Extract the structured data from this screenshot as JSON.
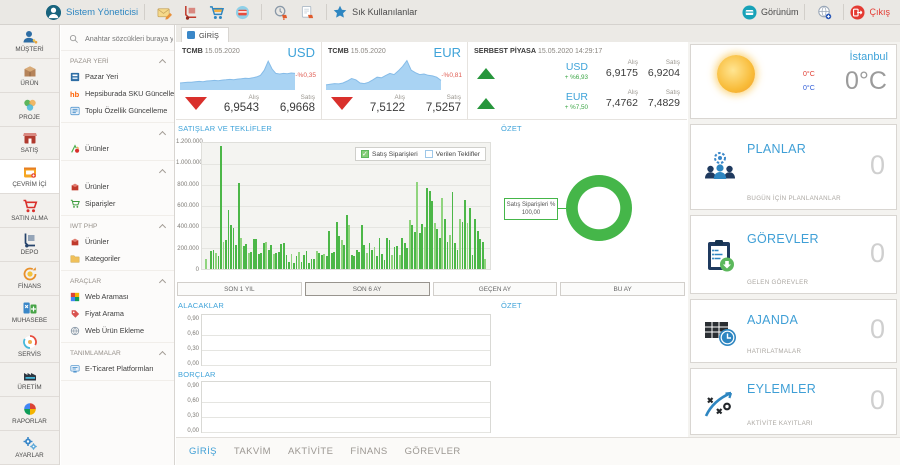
{
  "toolbar": {
    "user_name": "Sistem Yöneticisi",
    "favorites_label": "Sık Kullanılanlar",
    "view_label": "Görünüm",
    "exit_label": "Çıkış",
    "icons": [
      "user-avatar-icon",
      "mail-icon",
      "handtruck-icon",
      "cart-icon",
      "pos-icon",
      "pending-cart-icon",
      "document-cart-icon",
      "star-icon",
      "view-icon",
      "globe-icon",
      "exit-icon"
    ]
  },
  "sidebar": {
    "items": [
      {
        "label": "MÜŞTERİ",
        "icon": "customers-icon",
        "active": false
      },
      {
        "label": "ÜRÜN",
        "icon": "product-box-icon",
        "active": false
      },
      {
        "label": "PROJE",
        "icon": "projects-icon",
        "active": false
      },
      {
        "label": "SATIŞ",
        "icon": "sales-icon",
        "active": false
      },
      {
        "label": "ÇEVRİM İÇİ",
        "icon": "online-store-icon",
        "active": true
      },
      {
        "label": "SATIN ALMA",
        "icon": "purchasing-cart-icon",
        "active": false
      },
      {
        "label": "DEPO",
        "icon": "warehouse-icon",
        "active": false
      },
      {
        "label": "FİNANS",
        "icon": "finance-icon",
        "active": false
      },
      {
        "label": "MUHASEBE",
        "icon": "accounting-icon",
        "active": false
      },
      {
        "label": "SERVİS",
        "icon": "service-icon",
        "active": false
      },
      {
        "label": "ÜRETİM",
        "icon": "production-icon",
        "active": false
      },
      {
        "label": "RAPORLAR",
        "icon": "reports-pie-icon",
        "active": false
      },
      {
        "label": "AYARLAR",
        "icon": "settings-gears-icon",
        "active": false
      }
    ]
  },
  "menu": {
    "search_placeholder": "Anahtar sözcükleri buraya yaz",
    "sections": [
      {
        "title": "PAZAR YERİ",
        "items": [
          {
            "label": "Pazar Yeri",
            "icon": "marketplace-icon"
          },
          {
            "label": "Hepsiburada SKU Güncelleme",
            "icon": "hepsiburada-icon"
          },
          {
            "label": "Toplu Özellik Güncelleme",
            "icon": "bulk-update-icon"
          }
        ]
      },
      {
        "title": "",
        "items": [
          {
            "label": "Ürünler",
            "icon": "products-colored-icon"
          }
        ]
      },
      {
        "title": "",
        "items": [
          {
            "label": "Ürünler",
            "icon": "products-red-icon"
          },
          {
            "label": "Siparişler",
            "icon": "orders-cart-icon"
          }
        ]
      },
      {
        "title": "IWT PHP",
        "items": [
          {
            "label": "Ürünler",
            "icon": "products-red-icon"
          },
          {
            "label": "Kategoriler",
            "icon": "categories-icon"
          }
        ]
      },
      {
        "title": "ARAÇLAR",
        "items": [
          {
            "label": "Web Araması",
            "icon": "web-search-icon"
          },
          {
            "label": "Fiyat Arama",
            "icon": "price-search-icon"
          },
          {
            "label": "Web Ürün Ekleme",
            "icon": "web-add-icon"
          }
        ]
      },
      {
        "title": "TANIMLAMALAR",
        "items": [
          {
            "label": "E-Ticaret Platformları",
            "icon": "ecommerce-platforms-icon"
          }
        ]
      }
    ]
  },
  "main": {
    "top_tab": "GİRİŞ",
    "currency": {
      "usd": {
        "source": "TCMB",
        "date": "15.05.2020",
        "code": "USD",
        "change": "-%0,35",
        "buy_label": "Alış",
        "sell_label": "Satış",
        "buy": "6,9543",
        "sell": "6,9668"
      },
      "eur": {
        "source": "TCMB",
        "date": "15.05.2020",
        "code": "EUR",
        "change": "-%0,81",
        "buy_label": "Alış",
        "sell_label": "Satış",
        "buy": "7,5122",
        "sell": "7,5257"
      },
      "free_market": {
        "title": "SERBEST PİYASA",
        "datetime": "15.05.2020 14:29:17",
        "buy_label": "Alış",
        "sell_label": "Satış",
        "rows": [
          {
            "code": "USD",
            "change": "+ %6,93",
            "buy": "6,9175",
            "sell": "6,9204"
          },
          {
            "code": "EUR",
            "change": "+ %7,50",
            "buy": "7,4762",
            "sell": "7,4829"
          }
        ]
      }
    },
    "weather": {
      "city": "İstanbul",
      "day_high": "0°C",
      "day_low": "0°C",
      "current": "0°C"
    },
    "sales_section": {
      "title": "SATIŞLAR VE TEKLİFLER",
      "summary_title": "ÖZET",
      "legend": [
        {
          "label": "Satış Siparişleri",
          "checked": true
        },
        {
          "label": "Verilen Teklifler",
          "checked": false
        }
      ],
      "donut_label": "Satış Siparişleri %",
      "donut_value": "100,00"
    },
    "range_buttons": [
      {
        "label": "SON 1 YIL",
        "selected": false
      },
      {
        "label": "SON 6 AY",
        "selected": true
      },
      {
        "label": "GEÇEN AY",
        "selected": false
      },
      {
        "label": "BU AY",
        "selected": false
      }
    ],
    "receivables": {
      "title": "ALACAKLAR",
      "summary_title": "ÖZET",
      "yticks": [
        "0,90",
        "0,60",
        "0,30",
        "0,00"
      ]
    },
    "payables": {
      "title": "BORÇLAR",
      "yticks": [
        "0,90",
        "0,60",
        "0,30",
        "0,00"
      ]
    },
    "bottom_tabs": [
      {
        "label": "GİRİŞ",
        "active": true
      },
      {
        "label": "TAKVİM",
        "active": false
      },
      {
        "label": "AKTİVİTE",
        "active": false
      },
      {
        "label": "FİNANS",
        "active": false
      },
      {
        "label": "GÖREVLER",
        "active": false
      }
    ]
  },
  "cards": [
    {
      "name": "planlar",
      "title": "PLANLAR",
      "count": "0",
      "subtitle": "BUGÜN İÇİN PLANLANANLAR",
      "icon": "plans-icon"
    },
    {
      "name": "gorevler",
      "title": "GÖREVLER",
      "count": "0",
      "subtitle": "GELEN GÖREVLER",
      "icon": "tasks-icon"
    },
    {
      "name": "ajanda",
      "title": "AJANDA",
      "count": "0",
      "subtitle": "HATIRLATMALAR",
      "icon": "agenda-icon"
    },
    {
      "name": "eylemler",
      "title": "EYLEMLER",
      "count": "0",
      "subtitle": "AKTİVİTE KAYITLARI",
      "icon": "actions-icon"
    }
  ],
  "colors": {
    "accent_blue": "#3fa3d9",
    "link_blue": "#2e86c1",
    "bar_green": "#4cb748",
    "bar_green_light": "#90d47e",
    "donut_green": "#45b649",
    "red": "#d9302c",
    "change_red": "#e05c52",
    "change_green": "#3aa544",
    "spark_fill": "#a9d3f3",
    "spark_stroke": "#86bce8"
  },
  "chart_data": [
    {
      "id": "sales_and_offers",
      "type": "bar",
      "title": "SATIŞLAR VE TEKLİFLER",
      "range_selected": "SON 6 AY",
      "xticks": [],
      "grid": true,
      "legend_position": "top-right",
      "ylim": [
        0,
        1200000
      ],
      "yticks": [
        "1.200.000",
        "1.000.000",
        "800.000",
        "600.000",
        "400.000",
        "200.000",
        "0"
      ],
      "series": [
        {
          "name": "Satış Siparişleri",
          "color": "#4cb748",
          "values": [
            95000,
            0,
            170000,
            180000,
            150000,
            120000,
            1170000,
            260000,
            280000,
            560000,
            420000,
            390000,
            230000,
            820000,
            300000,
            220000,
            240000,
            150000,
            160000,
            290000,
            290000,
            140000,
            150000,
            250000,
            260000,
            180000,
            230000,
            140000,
            150000,
            160000,
            240000,
            250000,
            130000,
            70000,
            140000,
            60000,
            120000,
            160000,
            70000,
            130000,
            170000,
            60000,
            100000,
            100000,
            170000,
            150000,
            130000,
            140000,
            120000,
            360000,
            150000,
            160000,
            450000,
            310000,
            280000,
            230000,
            510000,
            420000,
            130000,
            120000,
            180000,
            160000,
            420000,
            230000,
            150000,
            250000,
            180000,
            210000,
            120000,
            300000,
            140000,
            90000,
            300000,
            280000,
            130000,
            210000,
            220000,
            130000,
            300000,
            250000,
            200000,
            470000,
            420000,
            350000,
            830000,
            340000,
            430000,
            400000,
            770000,
            740000,
            650000,
            440000,
            380000,
            300000,
            680000,
            480000,
            260000,
            320000,
            730000,
            250000,
            180000,
            480000,
            450000,
            660000,
            440000,
            580000,
            130000,
            480000,
            360000,
            290000,
            260000,
            100000
          ]
        },
        {
          "name": "Verilen Teklifler",
          "color": "#9ec7e8",
          "values": []
        }
      ]
    },
    {
      "id": "summary_donut",
      "type": "pie",
      "title": "ÖZET",
      "slices": [
        {
          "label": "Satış Siparişleri %",
          "value": 100.0,
          "display": "100,00",
          "color": "#45b649"
        }
      ]
    },
    {
      "id": "usd_spark",
      "type": "area",
      "title": "USD TCMB",
      "values": [
        22,
        23,
        24,
        24,
        26,
        27,
        26,
        28,
        29,
        30,
        29,
        31,
        32,
        33,
        32,
        34,
        35,
        37,
        36,
        38,
        41,
        46,
        62,
        90,
        66,
        52,
        50,
        52,
        51,
        53,
        52
      ]
    },
    {
      "id": "eur_spark",
      "type": "area",
      "title": "EUR TCMB",
      "values": [
        16,
        18,
        20,
        19,
        22,
        28,
        36,
        32,
        22,
        20,
        24,
        32,
        40,
        38,
        45,
        52,
        48,
        60,
        74,
        92,
        62,
        54,
        48,
        50,
        46,
        44,
        40,
        30
      ]
    },
    {
      "id": "receivables",
      "type": "line",
      "title": "ALACAKLAR",
      "values": [],
      "ylim": [
        0,
        0.9
      ],
      "yticks": [
        "0,90",
        "0,60",
        "0,30",
        "0,00"
      ]
    },
    {
      "id": "payables",
      "type": "line",
      "title": "BORÇLAR",
      "values": [],
      "ylim": [
        0,
        0.9
      ],
      "yticks": [
        "0,90",
        "0,60",
        "0,30",
        "0,00"
      ]
    }
  ]
}
